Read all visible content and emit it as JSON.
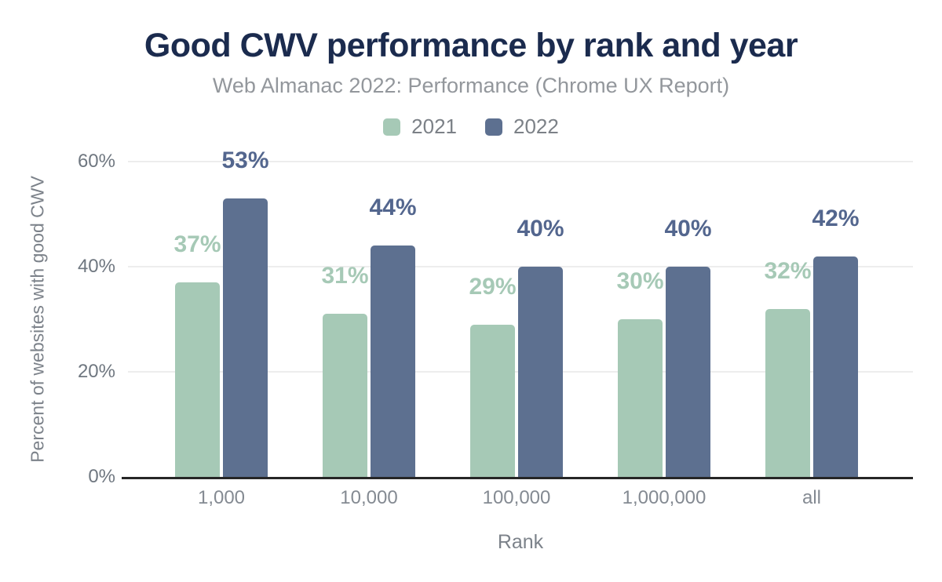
{
  "chart_data": {
    "type": "bar",
    "title": "Good CWV performance by rank and year",
    "subtitle": "Web Almanac 2022: Performance (Chrome UX Report)",
    "xlabel": "Rank",
    "ylabel": "Percent of websites with good CWV",
    "categories": [
      "1,000",
      "10,000",
      "100,000",
      "1,000,000",
      "all"
    ],
    "series": [
      {
        "name": "2021",
        "values": [
          37,
          31,
          29,
          30,
          32
        ],
        "color": "#a6c9b6",
        "label_color": "#a6c9b6"
      },
      {
        "name": "2022",
        "values": [
          53,
          44,
          40,
          40,
          42
        ],
        "color": "#5d7090",
        "label_color": "#53668e"
      }
    ],
    "value_suffix": "%",
    "ylim": [
      0,
      60
    ],
    "yticks": [
      0,
      20,
      40,
      60
    ],
    "ytick_labels": [
      "0%",
      "20%",
      "40%",
      "60%"
    ],
    "grid": "horizontal",
    "legend_position": "top",
    "colors": {
      "title": "#1b2b4e",
      "subtitle": "#93979c",
      "axis_text": "#7c828a",
      "y_tick_text": "#6f7780",
      "x_tick_text": "#848a92",
      "legend_text": "#7c8187",
      "gridline": "#ededed",
      "baseline": "#262626"
    }
  }
}
